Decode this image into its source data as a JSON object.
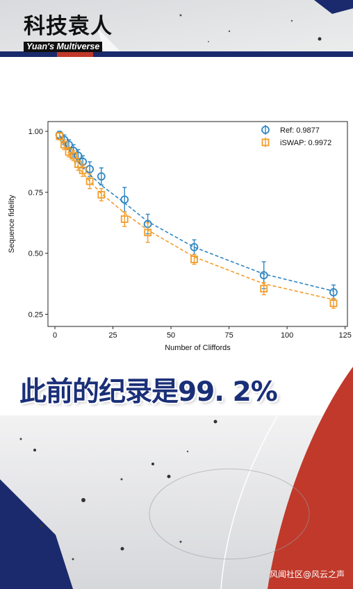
{
  "brand": {
    "name_cn": "科技袁人",
    "name_en": "Yuan's Multiverse"
  },
  "caption": "此前的纪录是99. 2%",
  "watermark": "风闻社区@风云之声",
  "colors": {
    "ref": "#2e86c1",
    "iswap": "#f39c29",
    "caption": "#1a2f78",
    "accent_red": "#c0392b",
    "accent_navy": "#1a2a6c"
  },
  "chart_data": {
    "type": "line",
    "xlabel": "Number of Cliffords",
    "ylabel": "Sequence fidelity",
    "xlim": [
      -3,
      126
    ],
    "ylim": [
      0.2,
      1.04
    ],
    "xticks": [
      0,
      25,
      50,
      75,
      100,
      125
    ],
    "yticks": [
      0.25,
      0.5,
      0.75,
      1.0
    ],
    "ytick_labels": [
      "0.25",
      "0.50",
      "0.75",
      "1.00"
    ],
    "legend_position": "top-right",
    "series": [
      {
        "name": "Ref: 0.9877",
        "marker": "circle",
        "color": "#2e86c1",
        "x": [
          2,
          4,
          6,
          8,
          10,
          12,
          15,
          20,
          30,
          40,
          60,
          90,
          120
        ],
        "y": [
          0.985,
          0.965,
          0.945,
          0.92,
          0.9,
          0.875,
          0.845,
          0.815,
          0.72,
          0.62,
          0.525,
          0.41,
          0.34
        ],
        "err": [
          0.015,
          0.02,
          0.02,
          0.025,
          0.025,
          0.025,
          0.03,
          0.035,
          0.05,
          0.04,
          0.03,
          0.055,
          0.03
        ],
        "fit": [
          0.985,
          0.955,
          0.925,
          0.9,
          0.875,
          0.852,
          0.823,
          0.779,
          0.706,
          0.63,
          0.525,
          0.415,
          0.345
        ]
      },
      {
        "name": "iSWAP: 0.9972",
        "marker": "square",
        "color": "#f39c29",
        "x": [
          2,
          4,
          6,
          8,
          10,
          12,
          15,
          20,
          30,
          40,
          60,
          90,
          120
        ],
        "y": [
          0.98,
          0.945,
          0.915,
          0.9,
          0.865,
          0.84,
          0.795,
          0.74,
          0.64,
          0.585,
          0.475,
          0.355,
          0.295
        ],
        "err": [
          0.015,
          0.02,
          0.02,
          0.02,
          0.025,
          0.025,
          0.03,
          0.025,
          0.03,
          0.04,
          0.02,
          0.025,
          0.02
        ],
        "fit": [
          0.975,
          0.94,
          0.91,
          0.88,
          0.855,
          0.83,
          0.795,
          0.745,
          0.665,
          0.595,
          0.485,
          0.375,
          0.31
        ]
      }
    ]
  }
}
